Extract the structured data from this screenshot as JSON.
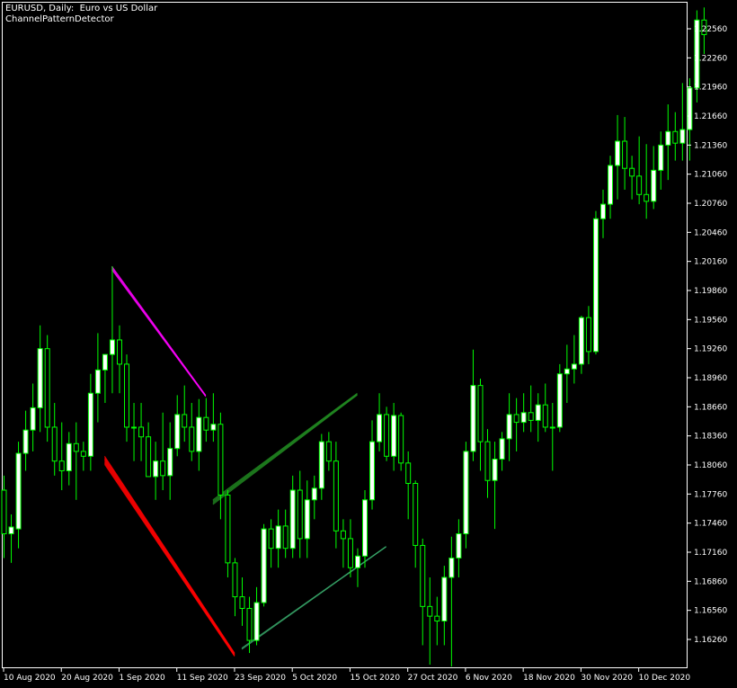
{
  "header": {
    "symbol_line": "EURUSD, Daily:  Euro vs US Dollar",
    "indicator_name": "ChannelPatternDetector"
  },
  "colors": {
    "background": "#000000",
    "frame": "#ffffff",
    "candle": "#00ff00",
    "bull_body": "#ffffff",
    "bear_body": "#000000",
    "channel_down_upper": "#ff00ff",
    "channel_down_lower": "#ff0000",
    "channel_up": "#228b22",
    "channel_up_light": "#3cb371"
  },
  "chart_data": {
    "type": "candlestick",
    "title": "EURUSD, Daily:  Euro vs US Dollar",
    "ylim": [
      1.1605,
      1.2295
    ],
    "y_ticks": [
      "1.22560",
      "1.22260",
      "1.21960",
      "1.21660",
      "1.21360",
      "1.21060",
      "1.20760",
      "1.20460",
      "1.20160",
      "1.19860",
      "1.19560",
      "1.19260",
      "1.18960",
      "1.18660",
      "1.18360",
      "1.18060",
      "1.17760",
      "1.17460",
      "1.17160",
      "1.16860",
      "1.16560",
      "1.16260"
    ],
    "x_labels": [
      {
        "label": "10 Aug 2020",
        "index": 0
      },
      {
        "label": "20 Aug 2020",
        "index": 8
      },
      {
        "label": "1 Sep 2020",
        "index": 16
      },
      {
        "label": "11 Sep 2020",
        "index": 24
      },
      {
        "label": "23 Sep 2020",
        "index": 32
      },
      {
        "label": "5 Oct 2020",
        "index": 40
      },
      {
        "label": "15 Oct 2020",
        "index": 48
      },
      {
        "label": "27 Oct 2020",
        "index": 56
      },
      {
        "label": "6 Nov 2020",
        "index": 64
      },
      {
        "label": "18 Nov 2020",
        "index": 72
      },
      {
        "label": "30 Nov 2020",
        "index": 80
      },
      {
        "label": "10 Dec 2020",
        "index": 88
      }
    ],
    "candles": [
      [
        1.178,
        1.1795,
        1.171,
        1.1735
      ],
      [
        1.1735,
        1.1755,
        1.1705,
        1.1742
      ],
      [
        1.174,
        1.183,
        1.172,
        1.1818
      ],
      [
        1.1818,
        1.1862,
        1.18,
        1.1842
      ],
      [
        1.1842,
        1.189,
        1.182,
        1.1865
      ],
      [
        1.1865,
        1.195,
        1.184,
        1.1926
      ],
      [
        1.1926,
        1.194,
        1.183,
        1.1845
      ],
      [
        1.1845,
        1.187,
        1.1795,
        1.181
      ],
      [
        1.181,
        1.185,
        1.178,
        1.18
      ],
      [
        1.18,
        1.184,
        1.1785,
        1.1828
      ],
      [
        1.1828,
        1.185,
        1.177,
        1.182
      ],
      [
        1.182,
        1.183,
        1.18,
        1.1815
      ],
      [
        1.1815,
        1.19,
        1.18,
        1.188
      ],
      [
        1.188,
        1.1942,
        1.185,
        1.1904
      ],
      [
        1.1904,
        1.192,
        1.187,
        1.192
      ],
      [
        1.192,
        1.2011,
        1.188,
        1.1935
      ],
      [
        1.1935,
        1.195,
        1.188,
        1.191
      ],
      [
        1.191,
        1.192,
        1.183,
        1.1845
      ],
      [
        1.1845,
        1.187,
        1.181,
        1.1845
      ],
      [
        1.1845,
        1.187,
        1.181,
        1.1835
      ],
      [
        1.1835,
        1.185,
        1.18,
        1.1794
      ],
      [
        1.1794,
        1.183,
        1.177,
        1.181
      ],
      [
        1.181,
        1.186,
        1.178,
        1.1795
      ],
      [
        1.1795,
        1.185,
        1.177,
        1.1823
      ],
      [
        1.1823,
        1.1878,
        1.1815,
        1.1858
      ],
      [
        1.1858,
        1.1888,
        1.183,
        1.1845
      ],
      [
        1.1845,
        1.187,
        1.181,
        1.182
      ],
      [
        1.182,
        1.1874,
        1.18,
        1.1855
      ],
      [
        1.1855,
        1.1875,
        1.183,
        1.1842
      ],
      [
        1.1842,
        1.188,
        1.183,
        1.1848
      ],
      [
        1.1848,
        1.186,
        1.175,
        1.1775
      ],
      [
        1.1775,
        1.178,
        1.169,
        1.1705
      ],
      [
        1.1705,
        1.171,
        1.165,
        1.167
      ],
      [
        1.167,
        1.169,
        1.164,
        1.1658
      ],
      [
        1.1658,
        1.167,
        1.1612,
        1.1625
      ],
      [
        1.1625,
        1.168,
        1.162,
        1.1664
      ],
      [
        1.1664,
        1.1745,
        1.166,
        1.174
      ],
      [
        1.174,
        1.175,
        1.17,
        1.172
      ],
      [
        1.172,
        1.176,
        1.17,
        1.1743
      ],
      [
        1.1743,
        1.176,
        1.171,
        1.172
      ],
      [
        1.172,
        1.1795,
        1.171,
        1.178
      ],
      [
        1.178,
        1.18,
        1.171,
        1.173
      ],
      [
        1.173,
        1.179,
        1.171,
        1.177
      ],
      [
        1.177,
        1.1795,
        1.175,
        1.1782
      ],
      [
        1.1782,
        1.1838,
        1.177,
        1.183
      ],
      [
        1.183,
        1.184,
        1.18,
        1.181
      ],
      [
        1.181,
        1.183,
        1.172,
        1.1738
      ],
      [
        1.1738,
        1.175,
        1.17,
        1.173
      ],
      [
        1.173,
        1.175,
        1.169,
        1.17
      ],
      [
        1.17,
        1.172,
        1.168,
        1.1712
      ],
      [
        1.1712,
        1.178,
        1.17,
        1.177
      ],
      [
        1.177,
        1.1852,
        1.176,
        1.183
      ],
      [
        1.183,
        1.188,
        1.182,
        1.1858
      ],
      [
        1.1858,
        1.1866,
        1.181,
        1.1815
      ],
      [
        1.1815,
        1.187,
        1.18,
        1.1857
      ],
      [
        1.1857,
        1.186,
        1.18,
        1.1808
      ],
      [
        1.1808,
        1.182,
        1.175,
        1.1787
      ],
      [
        1.1787,
        1.179,
        1.17,
        1.1723
      ],
      [
        1.1723,
        1.173,
        1.162,
        1.166
      ],
      [
        1.166,
        1.169,
        1.16,
        1.165
      ],
      [
        1.165,
        1.167,
        1.162,
        1.1645
      ],
      [
        1.1645,
        1.1702,
        1.162,
        1.169
      ],
      [
        1.169,
        1.1732,
        1.1598,
        1.171
      ],
      [
        1.171,
        1.175,
        1.169,
        1.1735
      ],
      [
        1.1735,
        1.183,
        1.172,
        1.182
      ],
      [
        1.182,
        1.1925,
        1.181,
        1.1888
      ],
      [
        1.1888,
        1.1895,
        1.18,
        1.183
      ],
      [
        1.183,
        1.1843,
        1.1772,
        1.179
      ],
      [
        1.179,
        1.183,
        1.174,
        1.1812
      ],
      [
        1.1812,
        1.184,
        1.18,
        1.1833
      ],
      [
        1.1833,
        1.188,
        1.181,
        1.1858
      ],
      [
        1.1858,
        1.1875,
        1.182,
        1.185
      ],
      [
        1.185,
        1.188,
        1.184,
        1.186
      ],
      [
        1.186,
        1.1888,
        1.184,
        1.1852
      ],
      [
        1.1852,
        1.188,
        1.183,
        1.1868
      ],
      [
        1.1868,
        1.189,
        1.184,
        1.1845
      ],
      [
        1.1845,
        1.187,
        1.18,
        1.1845
      ],
      [
        1.1845,
        1.191,
        1.184,
        1.19
      ],
      [
        1.19,
        1.193,
        1.187,
        1.1905
      ],
      [
        1.1905,
        1.194,
        1.189,
        1.191
      ],
      [
        1.191,
        1.196,
        1.19,
        1.1958
      ],
      [
        1.1958,
        1.197,
        1.191,
        1.1923
      ],
      [
        1.1923,
        1.2068,
        1.192,
        1.206
      ],
      [
        1.206,
        1.209,
        1.204,
        1.2075
      ],
      [
        1.2075,
        1.2125,
        1.206,
        1.2115
      ],
      [
        1.2115,
        1.2167,
        1.208,
        1.214
      ],
      [
        1.214,
        1.2165,
        1.209,
        1.2112
      ],
      [
        1.2112,
        1.2125,
        1.208,
        1.2104
      ],
      [
        1.2104,
        1.2145,
        1.2075,
        1.2085
      ],
      [
        1.2085,
        1.2137,
        1.206,
        1.2078
      ],
      [
        1.2078,
        1.2135,
        1.207,
        1.211
      ],
      [
        1.211,
        1.215,
        1.209,
        1.2136
      ],
      [
        1.2136,
        1.2178,
        1.21,
        1.215
      ],
      [
        1.215,
        1.217,
        1.212,
        1.2138
      ],
      [
        1.2138,
        1.22,
        1.212,
        1.2152
      ],
      [
        1.2152,
        1.2205,
        1.212,
        1.2195
      ],
      [
        1.2195,
        1.2275,
        1.218,
        1.2265
      ],
      [
        1.2265,
        1.2278,
        1.223,
        1.225
      ]
    ],
    "channel_lines": [
      {
        "name": "",
        "color": "#ff00ff",
        "x1": 15,
        "y1": 1.2011,
        "x2": 28,
        "y2": 1.1878,
        "copies": 4
      },
      {
        "name": "",
        "color": "#ff0000",
        "x1": 14,
        "y1": 1.1815,
        "x2": 32,
        "y2": 1.1612,
        "copies": 8
      },
      {
        "name": "",
        "color": "#228b22",
        "x1": 29,
        "y1": 1.177,
        "x2": 49,
        "y2": 1.188,
        "copies": 5
      },
      {
        "name": "",
        "color": "#3cb371",
        "x1": 33,
        "y1": 1.1617,
        "x2": 53,
        "y2": 1.1722,
        "copies": 2
      }
    ]
  }
}
